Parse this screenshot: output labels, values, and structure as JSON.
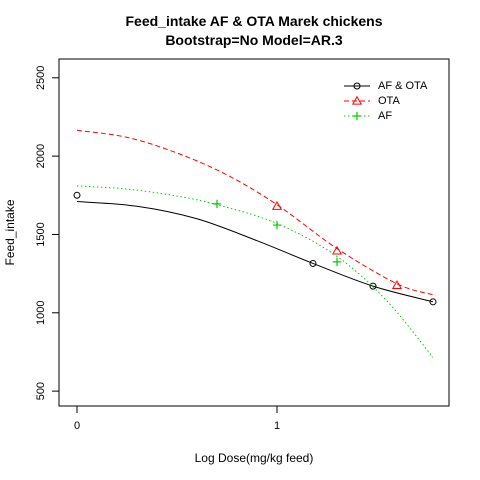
{
  "chart_data": {
    "type": "line",
    "title": [
      "Feed_intake AF & OTA Marek chickens",
      "Bootstrap=No Model=AR.3"
    ],
    "xlabel": "Log Dose(mg/kg feed)",
    "ylabel": "Feed_intake",
    "xlim": [
      -0.09,
      1.86
    ],
    "ylim": [
      405,
      2620
    ],
    "x_ticks": [
      0,
      1
    ],
    "x_tick_labels": [
      "0",
      "1"
    ],
    "y_ticks": [
      500,
      1000,
      1500,
      2000,
      2500
    ],
    "y_tick_labels": [
      "500",
      "1000",
      "1500",
      "2000",
      "2500"
    ],
    "grid": false,
    "legend_position": "top-right",
    "legend": [
      "AF & OTA",
      "OTA",
      "AF"
    ],
    "series": [
      {
        "name": "AF & OTA",
        "color": "#000000",
        "line_style": "solid",
        "marker": "circle",
        "points": [
          {
            "x": 0,
            "y": 1750
          },
          {
            "x": 1.18,
            "y": 1315
          },
          {
            "x": 1.48,
            "y": 1170
          },
          {
            "x": 1.78,
            "y": 1070
          }
        ],
        "curve": [
          {
            "x": 0,
            "y": 1710
          },
          {
            "x": 0.3,
            "y": 1680
          },
          {
            "x": 0.6,
            "y": 1600
          },
          {
            "x": 0.9,
            "y": 1460
          },
          {
            "x": 1.18,
            "y": 1315
          },
          {
            "x": 1.48,
            "y": 1170
          },
          {
            "x": 1.78,
            "y": 1070
          }
        ]
      },
      {
        "name": "OTA",
        "color": "#ff0000",
        "line_style": "dashed",
        "marker": "triangle",
        "points": [
          {
            "x": 1.0,
            "y": 1680
          },
          {
            "x": 1.3,
            "y": 1395
          },
          {
            "x": 1.6,
            "y": 1175
          }
        ],
        "curve": [
          {
            "x": 0,
            "y": 2165
          },
          {
            "x": 0.25,
            "y": 2120
          },
          {
            "x": 0.5,
            "y": 2020
          },
          {
            "x": 0.75,
            "y": 1880
          },
          {
            "x": 1.0,
            "y": 1690
          },
          {
            "x": 1.3,
            "y": 1410
          },
          {
            "x": 1.6,
            "y": 1185
          },
          {
            "x": 1.78,
            "y": 1115
          }
        ]
      },
      {
        "name": "AF",
        "color": "#00cc00",
        "line_style": "dotted",
        "marker": "plus",
        "points": [
          {
            "x": 0.7,
            "y": 1695
          },
          {
            "x": 1.0,
            "y": 1560
          },
          {
            "x": 1.3,
            "y": 1325
          }
        ],
        "curve": [
          {
            "x": 0,
            "y": 1810
          },
          {
            "x": 0.25,
            "y": 1790
          },
          {
            "x": 0.5,
            "y": 1745
          },
          {
            "x": 0.7,
            "y": 1690
          },
          {
            "x": 1.0,
            "y": 1570
          },
          {
            "x": 1.3,
            "y": 1360
          },
          {
            "x": 1.55,
            "y": 1075
          },
          {
            "x": 1.78,
            "y": 715
          }
        ]
      }
    ]
  }
}
